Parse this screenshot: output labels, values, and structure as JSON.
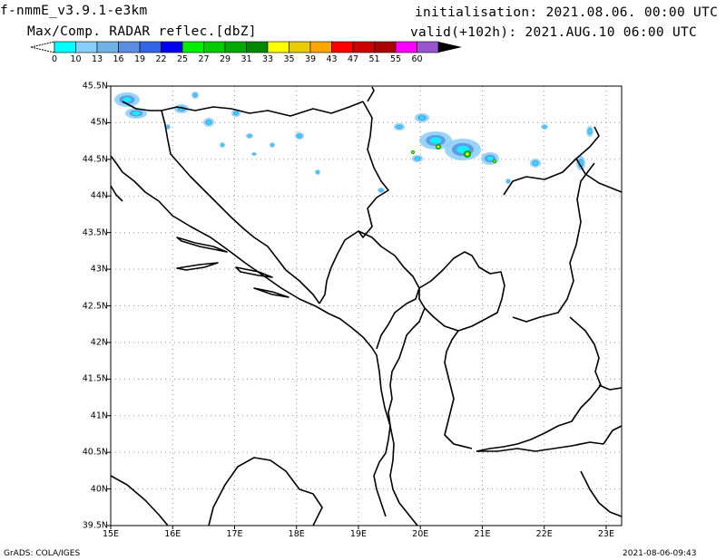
{
  "header": {
    "model": "f-nmmE_v3.9.1-e3km",
    "field": "Max/Comp. RADAR reflec.[dbZ]",
    "init": "initialisation: 2021.08.06. 00:00 UTC",
    "valid": "valid(+102h): 2021.AUG.10 06:00 UTC"
  },
  "colorbar": {
    "labels": [
      "0",
      "10",
      "13",
      "16",
      "19",
      "22",
      "25",
      "27",
      "29",
      "31",
      "33",
      "35",
      "39",
      "43",
      "47",
      "51",
      "55",
      "60"
    ],
    "colors": [
      "#00ffff",
      "#87cefa",
      "#6fb3e6",
      "#5a8ee0",
      "#3366e6",
      "#0000ee",
      "#00ee00",
      "#00cc00",
      "#00aa00",
      "#008800",
      "#ffff00",
      "#e6cc00",
      "#ffa500",
      "#ff0000",
      "#cc0000",
      "#aa0000",
      "#ff00ff",
      "#9955cc"
    ]
  },
  "axes": {
    "lat_labels": [
      "45.5N",
      "45N",
      "44.5N",
      "44N",
      "43.5N",
      "43N",
      "42.5N",
      "42N",
      "41.5N",
      "41N",
      "40.5N",
      "40N",
      "39.5N"
    ],
    "lon_labels": [
      "15E",
      "16E",
      "17E",
      "18E",
      "19E",
      "20E",
      "21E",
      "22E",
      "23E"
    ],
    "lat_range": [
      39.5,
      45.5
    ],
    "lon_range": [
      15,
      23.25
    ]
  },
  "footer": {
    "left": "GrADS: COLA/IGES",
    "right": "2021-08-06-09:43"
  }
}
